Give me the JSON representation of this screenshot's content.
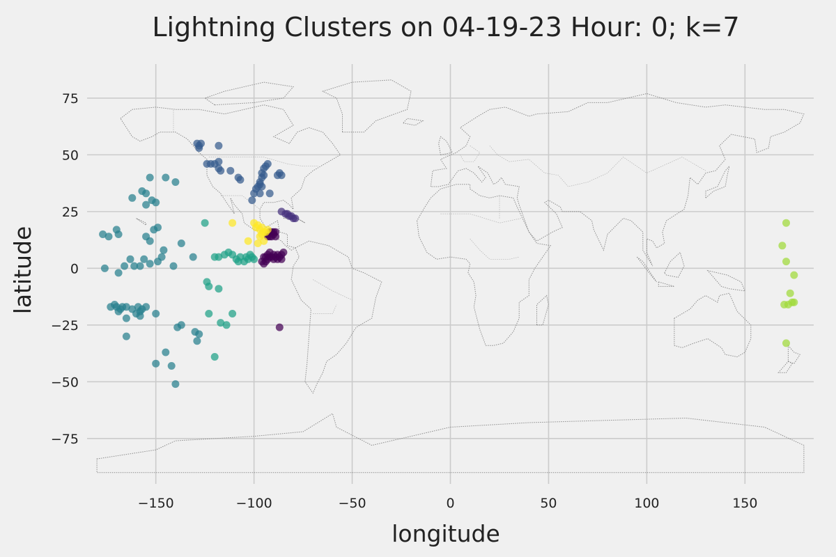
{
  "chart_data": {
    "type": "scatter",
    "title": "Lightning Clusters on 04-19-23 Hour: 0; k=7",
    "xlabel": "longitude",
    "ylabel": "latitude",
    "xlim": [
      -185,
      185
    ],
    "ylim": [
      -95,
      90
    ],
    "xticks": [
      -150,
      -100,
      -50,
      0,
      50,
      100,
      150
    ],
    "yticks": [
      -75,
      -50,
      -25,
      0,
      25,
      50,
      75
    ],
    "xtick_labels": [
      "−150",
      "−100",
      "−50",
      "0",
      "50",
      "100",
      "150"
    ],
    "ytick_labels": [
      "−75",
      "−50",
      "−25",
      "0",
      "25",
      "50",
      "75"
    ],
    "grid": true,
    "legend": "none",
    "background": "world-map-outline",
    "clusters": [
      {
        "color": "#440154",
        "points": [
          [
            -93,
            15
          ],
          [
            -92,
            16
          ],
          [
            -91,
            14
          ],
          [
            -90,
            15
          ],
          [
            -89,
            14
          ],
          [
            -91,
            16
          ],
          [
            -92,
            14
          ],
          [
            -90,
            16
          ],
          [
            -89,
            16
          ],
          [
            -93,
            14
          ],
          [
            -95,
            5
          ],
          [
            -96,
            3
          ],
          [
            -95,
            2
          ],
          [
            -94,
            5
          ],
          [
            -93,
            6
          ],
          [
            -92,
            5
          ],
          [
            -91,
            5
          ],
          [
            -90,
            6
          ],
          [
            -89,
            5
          ],
          [
            -88,
            6
          ],
          [
            -87,
            5
          ],
          [
            -86,
            6
          ],
          [
            -85,
            7
          ],
          [
            -86,
            4
          ],
          [
            -88,
            4
          ],
          [
            -90,
            4
          ],
          [
            -92,
            7
          ],
          [
            -93,
            4
          ],
          [
            -94,
            3
          ],
          [
            -87,
            -26
          ]
        ]
      },
      {
        "color": "#46327e",
        "points": [
          [
            -86,
            25
          ],
          [
            -84,
            24
          ],
          [
            -83,
            24
          ],
          [
            -82,
            23
          ],
          [
            -81,
            23
          ],
          [
            -80,
            22
          ],
          [
            -79,
            22
          ]
        ]
      },
      {
        "color": "#365c8d",
        "points": [
          [
            -129,
            55
          ],
          [
            -128,
            54
          ],
          [
            -127,
            55
          ],
          [
            -128,
            53
          ],
          [
            -118,
            54
          ],
          [
            -122,
            46
          ],
          [
            -120,
            46
          ],
          [
            -118,
            47
          ],
          [
            -118,
            44
          ],
          [
            -117,
            43
          ],
          [
            -112,
            43
          ],
          [
            -108,
            40
          ],
          [
            -107,
            39
          ],
          [
            -101,
            30
          ],
          [
            -100,
            33
          ],
          [
            -99,
            35
          ],
          [
            -98,
            36
          ],
          [
            -97,
            37
          ],
          [
            -97,
            38
          ],
          [
            -96,
            40
          ],
          [
            -96,
            42
          ],
          [
            -95,
            44
          ],
          [
            -95,
            41
          ],
          [
            -96,
            36
          ],
          [
            -97,
            33
          ],
          [
            -94,
            45
          ],
          [
            -93,
            46
          ],
          [
            -92,
            33
          ],
          [
            -88,
            41
          ],
          [
            -86,
            41
          ],
          [
            -87,
            42
          ],
          [
            -124,
            46
          ]
        ]
      },
      {
        "color": "#277f8e",
        "points": [
          [
            -153,
            40
          ],
          [
            -145,
            40
          ],
          [
            -140,
            38
          ],
          [
            -150,
            29
          ],
          [
            -155,
            28
          ],
          [
            -155,
            33
          ],
          [
            -157,
            34
          ],
          [
            -162,
            31
          ],
          [
            -152,
            30
          ],
          [
            -177,
            15
          ],
          [
            -174,
            14
          ],
          [
            -169,
            15
          ],
          [
            -170,
            17
          ],
          [
            -155,
            14
          ],
          [
            -153,
            12
          ],
          [
            -151,
            17
          ],
          [
            -149,
            18
          ],
          [
            -163,
            4
          ],
          [
            -161,
            1
          ],
          [
            -158,
            1
          ],
          [
            -156,
            4
          ],
          [
            -153,
            2
          ],
          [
            -149,
            3
          ],
          [
            -147,
            5
          ],
          [
            -146,
            8
          ],
          [
            -141,
            1
          ],
          [
            -137,
            11
          ],
          [
            -131,
            5
          ],
          [
            -176,
            0
          ],
          [
            -169,
            -2
          ],
          [
            -166,
            1
          ],
          [
            -170,
            -17
          ],
          [
            -168,
            -18
          ],
          [
            -167,
            -17
          ],
          [
            -169,
            -19
          ],
          [
            -171,
            -16
          ],
          [
            -165,
            -17
          ],
          [
            -159,
            -17
          ],
          [
            -157,
            -18
          ],
          [
            -155,
            -17
          ],
          [
            -150,
            -20
          ],
          [
            -158,
            -19
          ],
          [
            -160,
            -20
          ],
          [
            -173,
            -17
          ],
          [
            -165,
            -22
          ],
          [
            -139,
            -26
          ],
          [
            -137,
            -25
          ],
          [
            -130,
            -28
          ],
          [
            -128,
            -29
          ],
          [
            -129,
            -32
          ],
          [
            -165,
            -30
          ],
          [
            -150,
            -42
          ],
          [
            -145,
            -37
          ],
          [
            -142,
            -43
          ],
          [
            -140,
            -51
          ],
          [
            -158,
            -21
          ],
          [
            -162,
            -18
          ]
        ]
      },
      {
        "color": "#1fa187",
        "points": [
          [
            -125,
            20
          ],
          [
            -120,
            5
          ],
          [
            -118,
            5
          ],
          [
            -115,
            6
          ],
          [
            -113,
            7
          ],
          [
            -111,
            6
          ],
          [
            -109,
            4
          ],
          [
            -107,
            5
          ],
          [
            -105,
            3
          ],
          [
            -104,
            5
          ],
          [
            -103,
            4
          ],
          [
            -102,
            6
          ],
          [
            -101,
            5
          ],
          [
            -100,
            4
          ],
          [
            -108,
            3
          ],
          [
            -124,
            -6
          ],
          [
            -123,
            -8
          ],
          [
            -118,
            -9
          ],
          [
            -123,
            -20
          ],
          [
            -117,
            -24
          ],
          [
            -114,
            -25
          ],
          [
            -111,
            -20
          ],
          [
            -120,
            -39
          ]
        ]
      },
      {
        "color": "#4ac16d",
        "points": []
      },
      {
        "color": "#a0da39",
        "points": [
          [
            171,
            20
          ],
          [
            169,
            10
          ],
          [
            171,
            3
          ],
          [
            175,
            -3
          ],
          [
            173,
            -11
          ],
          [
            174,
            -15
          ],
          [
            175,
            -15
          ],
          [
            170,
            -16
          ],
          [
            172,
            -16
          ],
          [
            171,
            -33
          ]
        ]
      },
      {
        "color": "#fde725",
        "points": [
          [
            -111,
            20
          ],
          [
            -100,
            20
          ],
          [
            -99,
            18
          ],
          [
            -98,
            19
          ],
          [
            -97,
            17
          ],
          [
            -96,
            18
          ],
          [
            -95,
            16
          ],
          [
            -96,
            15
          ],
          [
            -97,
            14
          ],
          [
            -98,
            11
          ],
          [
            -95,
            12
          ],
          [
            -103,
            12
          ],
          [
            -94,
            16
          ],
          [
            -93,
            17
          ]
        ]
      }
    ]
  }
}
